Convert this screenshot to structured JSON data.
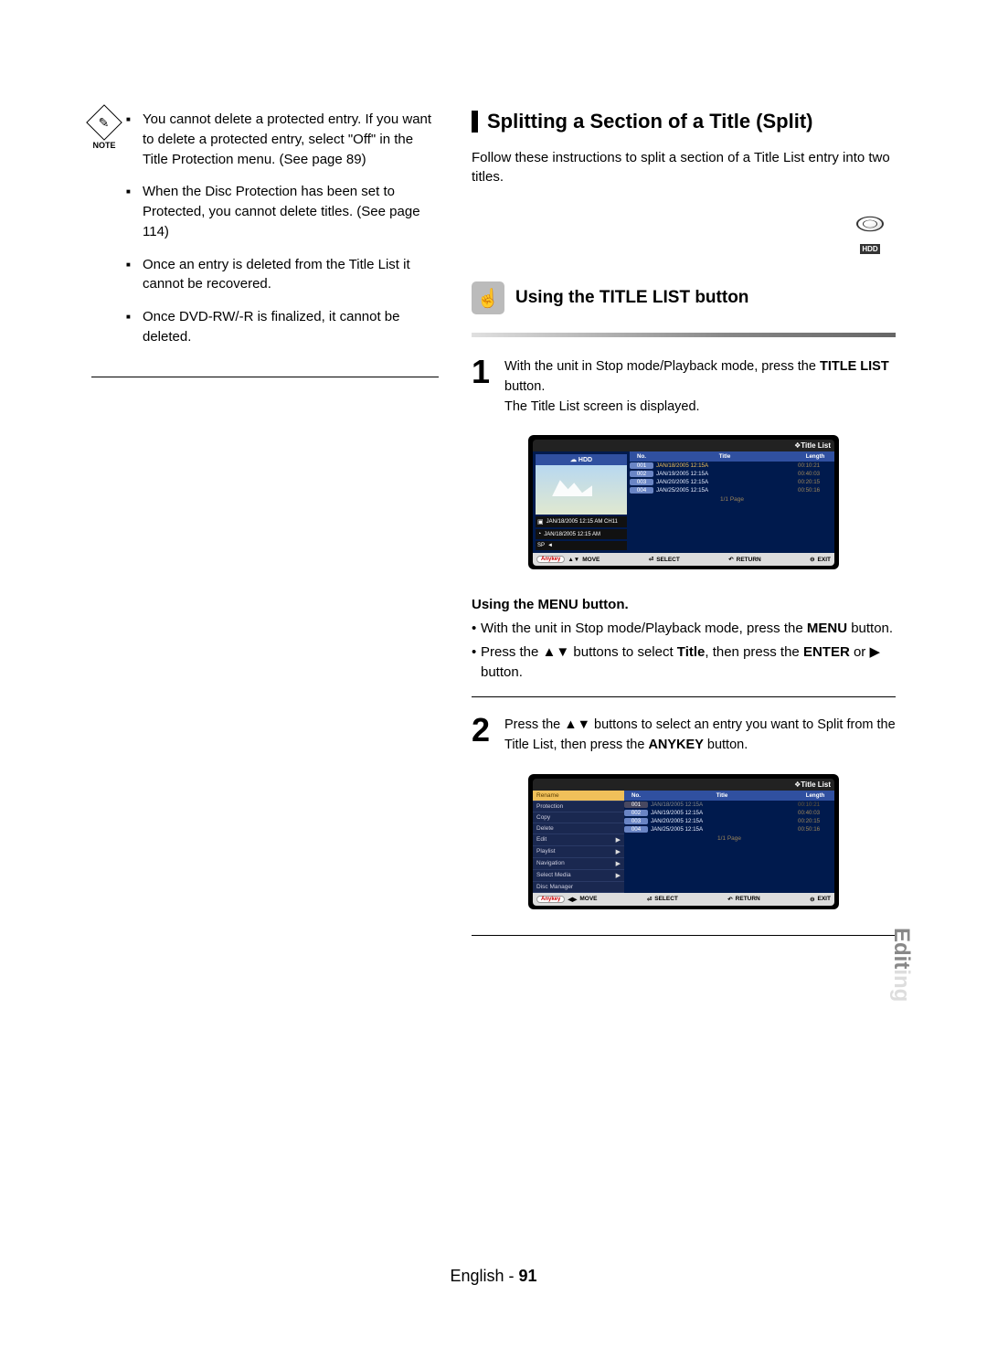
{
  "note_label": "NOTE",
  "left_notes": [
    "You cannot delete a protected entry. If you want to delete a protected entry, select \"Off\" in the Title Protection menu. (See page 89)",
    "When the Disc Protection has been set to Protected, you cannot delete titles. (See page 114)",
    "Once an entry is deleted from the Title List it cannot be recovered.",
    "Once DVD-RW/-R is finalized, it cannot be deleted."
  ],
  "section_title": "Splitting a Section of a Title (Split)",
  "intro": "Follow these instructions to split a section of a Title List entry into two titles.",
  "hdd_label": "HDD",
  "subsection_title": "Using the TITLE LIST button",
  "step1_num": "1",
  "step1_a": "With the unit in Stop mode/Playback mode, press the ",
  "step1_b": "TITLE LIST",
  "step1_c": " button.",
  "step1_d": "The Title List screen is displayed.",
  "osd": {
    "top_label": "Title List",
    "device": "HDD",
    "cols": {
      "no": "No.",
      "title": "Title",
      "length": "Length"
    },
    "rows": [
      {
        "no": "001",
        "title": "JAN/18/2005 12:15A",
        "len": "00:10:21"
      },
      {
        "no": "002",
        "title": "JAN/19/2005 12:15A",
        "len": "00:40:03"
      },
      {
        "no": "003",
        "title": "JAN/20/2005 12:15A",
        "len": "00:20:15"
      },
      {
        "no": "004",
        "title": "JAN/25/2005 12:15A",
        "len": "00:50:16"
      }
    ],
    "meta1": "JAN/18/2005 12:15 AM CH11",
    "meta2": "JAN/18/2005 12:15 AM",
    "meta3": "SP",
    "page": "1/1 Page",
    "foot_anykey": "Anykey",
    "foot_move": "MOVE",
    "foot_select": "SELECT",
    "foot_return": "RETURN",
    "foot_exit": "EXIT"
  },
  "menu_block_title": "Using the MENU button.",
  "menu_li1_a": "With the unit in Stop mode/Playback mode, press the ",
  "menu_li1_b": "MENU",
  "menu_li1_c": " button.",
  "menu_li2_a": "Press the ▲▼ buttons to select ",
  "menu_li2_b": "Title",
  "menu_li2_c": ", then press the ",
  "menu_li2_d": "ENTER",
  "menu_li2_e": " or ▶ button.",
  "step2_num": "2",
  "step2_a": "Press the ▲▼ buttons to select an entry you want to Split from the Title List, then press the ",
  "step2_b": "ANYKEY",
  "step2_c": " button.",
  "context_menu": [
    "Rename",
    "Protection",
    "Copy",
    "Delete",
    "Edit",
    "Playlist",
    "Navigation",
    "Select Media",
    "Disc Manager"
  ],
  "context_menu_arrows": [
    false,
    false,
    false,
    false,
    true,
    true,
    true,
    true,
    false
  ],
  "side_tab": "Editing",
  "footer_lang": "English - ",
  "footer_page": "91",
  "colors": {
    "osd_header": "#3050a0",
    "osd_body": "#001a4d",
    "osd_accent": "#f0c05a",
    "osd_len": "#9d865a",
    "side_on": "#888888",
    "side_off": "#dddddd"
  }
}
